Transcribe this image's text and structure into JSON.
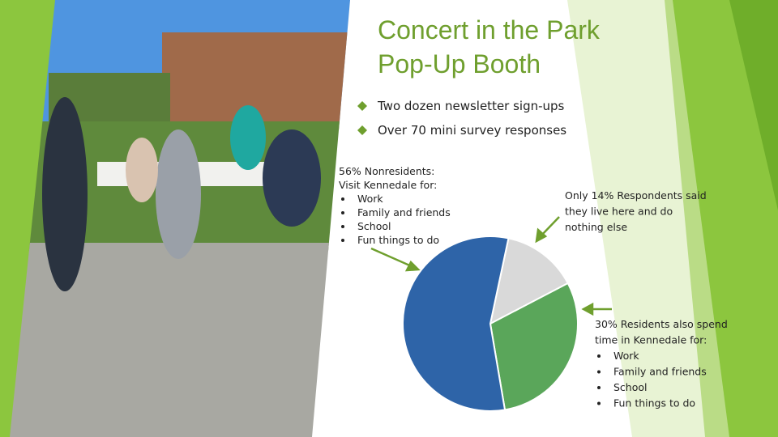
{
  "title": [
    "Concert in the Park",
    "Pop-Up Booth"
  ],
  "bullets": [
    "Two dozen newsletter sign-ups",
    "Over 70 mini survey responses"
  ],
  "chart_data": {
    "type": "pie",
    "categories": [
      null,
      null,
      null
    ],
    "values": [
      14,
      30,
      56
    ],
    "colors": [
      "#d9d9d9",
      "#5aa65a",
      "#2e64a8"
    ],
    "start_angle": 12
  },
  "annotations": [
    {
      "lines": [
        "56% Nonresidents:",
        "Visit Kennedale for:"
      ],
      "items": [
        "Work",
        "Family and friends",
        "School",
        "Fun things to do"
      ]
    },
    {
      "lines": [
        "Only 14% Respondents said",
        "they live here and do",
        "nothing else"
      ],
      "items": []
    },
    {
      "lines": [
        "30% Residents also spend",
        "time in Kennedale for:"
      ],
      "items": [
        "Work",
        "Family and friends",
        "School",
        "Fun things to do"
      ]
    }
  ]
}
